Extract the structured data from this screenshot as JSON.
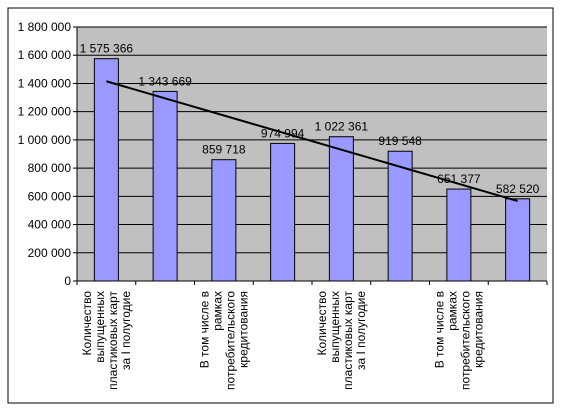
{
  "chart_data": {
    "type": "bar",
    "categories": [
      "Количество выпущенных пластиковых карт за I полугодие",
      "",
      "В том числе в рамках потребительского кредитования",
      "",
      "Количество выпущенных пластиковых карт за I полугодие",
      "",
      "В том числе в рамках потребительского кредитования",
      ""
    ],
    "category_label_lines": [
      [
        "Количество",
        "выпущенных",
        "пластиковых карт",
        "за I полугодие"
      ],
      [],
      [
        "В том числе в",
        "рамках",
        "потребительского",
        "кредитования"
      ],
      [],
      [
        "Количество",
        "выпущенных",
        "пластиковых карт",
        "за I полугодие"
      ],
      [],
      [
        "В том числе в",
        "рамках",
        "потребительского",
        "кредитования"
      ],
      []
    ],
    "values": [
      1575366,
      1343669,
      859718,
      974994,
      1022361,
      919548,
      651377,
      582520
    ],
    "data_labels": [
      "1 575 366",
      "1 343 669",
      "859 718",
      "974 994",
      "1 022 361",
      "919 548",
      "651 377",
      "582 520"
    ],
    "y_tick_labels": [
      "0",
      "200 000",
      "400 000",
      "600 000",
      "800 000",
      "1 000 000",
      "1 200 000",
      "1 400 000",
      "1 600 000",
      "1 800 000"
    ],
    "ylim": [
      0,
      1800000
    ],
    "y_tick_step": 200000,
    "trendline": {
      "type": "linear",
      "shown": true
    },
    "title": "",
    "xlabel": "",
    "ylabel": "",
    "grid": true,
    "legend": "none",
    "colors": {
      "bar_fill": "#9999ff",
      "bar_stroke": "#000000",
      "plot_background": "#c0c0c0",
      "gridline": "#000000",
      "trendline": "#000000",
      "frame_background": "#000000",
      "chart_background": "#ffffff"
    }
  }
}
